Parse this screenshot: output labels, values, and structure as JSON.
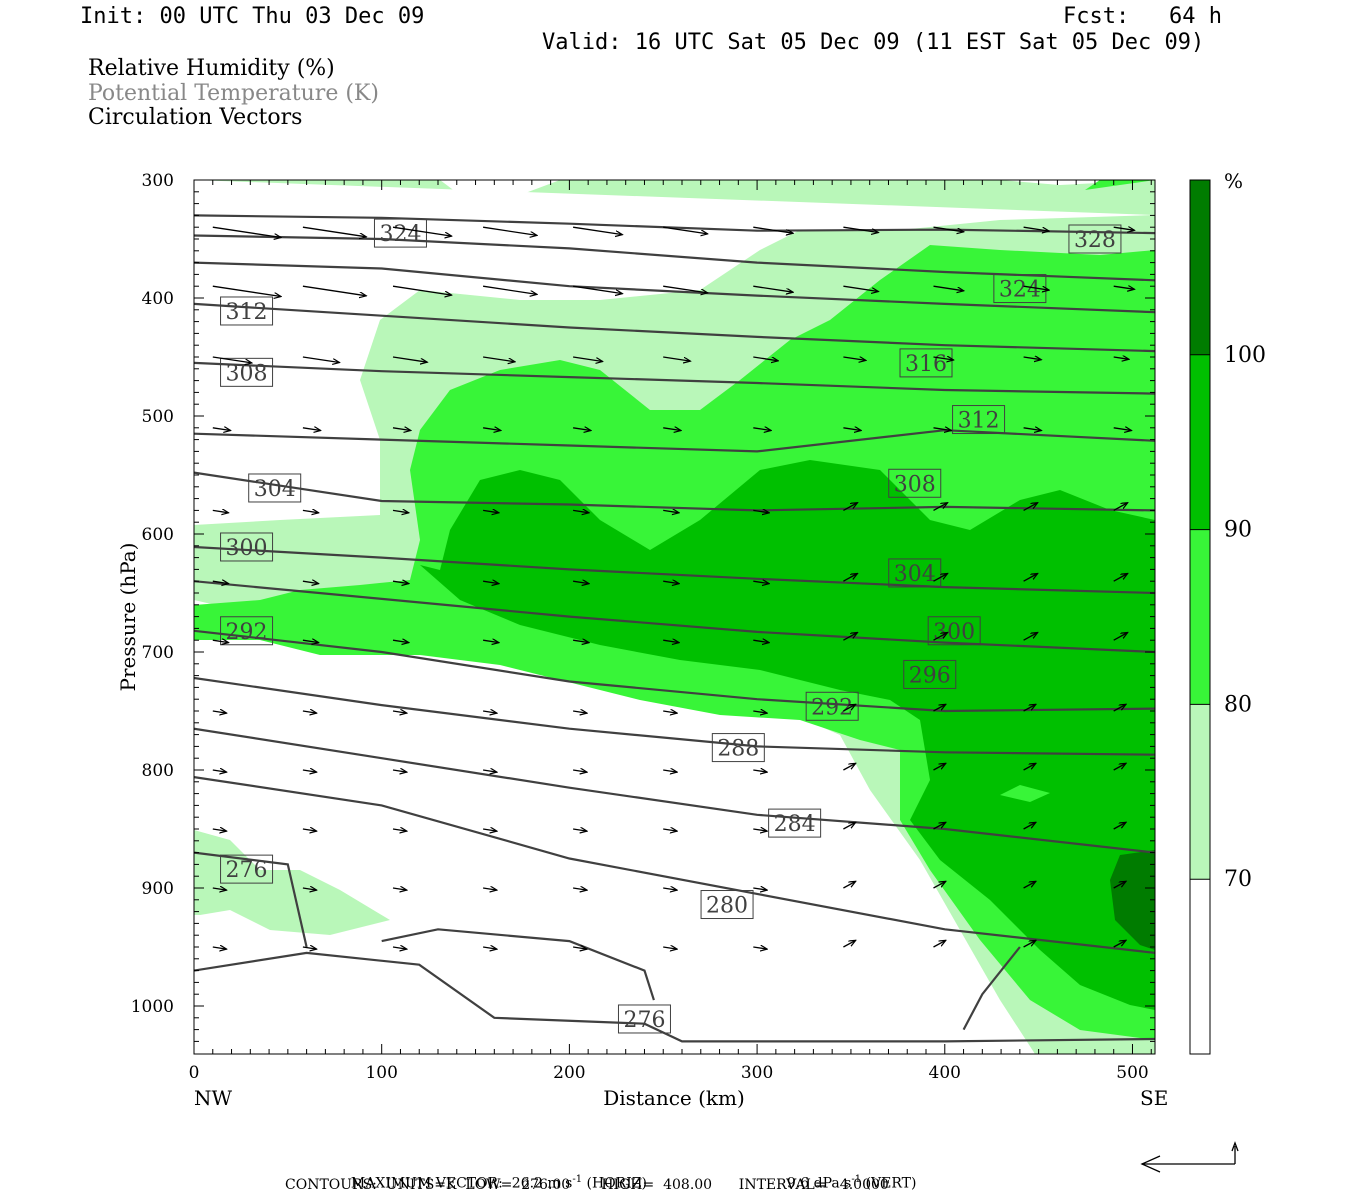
{
  "header": {
    "init": "Init: 00 UTC Thu 03 Dec 09",
    "fcst": "Fcst:   64 h",
    "valid": "Valid: 16 UTC Sat 05 Dec 09 (11 EST Sat 05 Dec 09)"
  },
  "fields": [
    {
      "label": "Relative Humidity (%)",
      "color": "#000000"
    },
    {
      "label": "Potential Temperature (K)",
      "color": "#888888"
    },
    {
      "label": "Circulation Vectors",
      "color": "#000000"
    }
  ],
  "chart_data": {
    "type": "cross-section",
    "xlabel": "Distance (km)",
    "ylabel": "Pressure (hPa)",
    "xlim": [
      0,
      512
    ],
    "ylim": [
      1040,
      300
    ],
    "xticks": [
      0,
      100,
      200,
      300,
      400,
      500
    ],
    "yticks": [
      300,
      400,
      500,
      600,
      700,
      800,
      900,
      1000
    ],
    "x_endpoints": {
      "left": "NW",
      "right": "SE"
    },
    "colorbar": {
      "unit": "%",
      "levels": [
        70,
        80,
        90,
        100
      ],
      "colors": [
        "#ffffff",
        "#b9f7b9",
        "#38f538",
        "#00c000",
        "#007c00"
      ]
    },
    "theta_contour_labels": [
      {
        "value": "324",
        "x": 110,
        "p": 345
      },
      {
        "value": "328",
        "x": 480,
        "p": 350
      },
      {
        "value": "324",
        "x": 440,
        "p": 392
      },
      {
        "value": "312",
        "x": 28,
        "p": 411
      },
      {
        "value": "308",
        "x": 28,
        "p": 463
      },
      {
        "value": "316",
        "x": 390,
        "p": 455
      },
      {
        "value": "312",
        "x": 418,
        "p": 503
      },
      {
        "value": "308",
        "x": 384,
        "p": 557
      },
      {
        "value": "304",
        "x": 43,
        "p": 561
      },
      {
        "value": "300",
        "x": 28,
        "p": 611
      },
      {
        "value": "304",
        "x": 384,
        "p": 633
      },
      {
        "value": "300",
        "x": 405,
        "p": 682
      },
      {
        "value": "292",
        "x": 28,
        "p": 682
      },
      {
        "value": "296",
        "x": 392,
        "p": 719
      },
      {
        "value": "292",
        "x": 340,
        "p": 746
      },
      {
        "value": "288",
        "x": 290,
        "p": 781
      },
      {
        "value": "284",
        "x": 320,
        "p": 845
      },
      {
        "value": "276",
        "x": 28,
        "p": 884
      },
      {
        "value": "280",
        "x": 284,
        "p": 914
      },
      {
        "value": "276",
        "x": 240,
        "p": 1011
      }
    ],
    "footer": {
      "max_vector": "MAXIMUM VECTOR:  26.2 m s",
      "max_vector_unit_sup": "-1",
      "horiz": " (HORIZ)",
      "vert_val": "9.6 dPa s",
      "vert_unit_sup": "-1",
      "vert": " (VERT)",
      "contours": "CONTOURS:  UNITS=K  LOW=  276.00       HIGH=  408.00      INTERVAL=   4.0000"
    }
  }
}
